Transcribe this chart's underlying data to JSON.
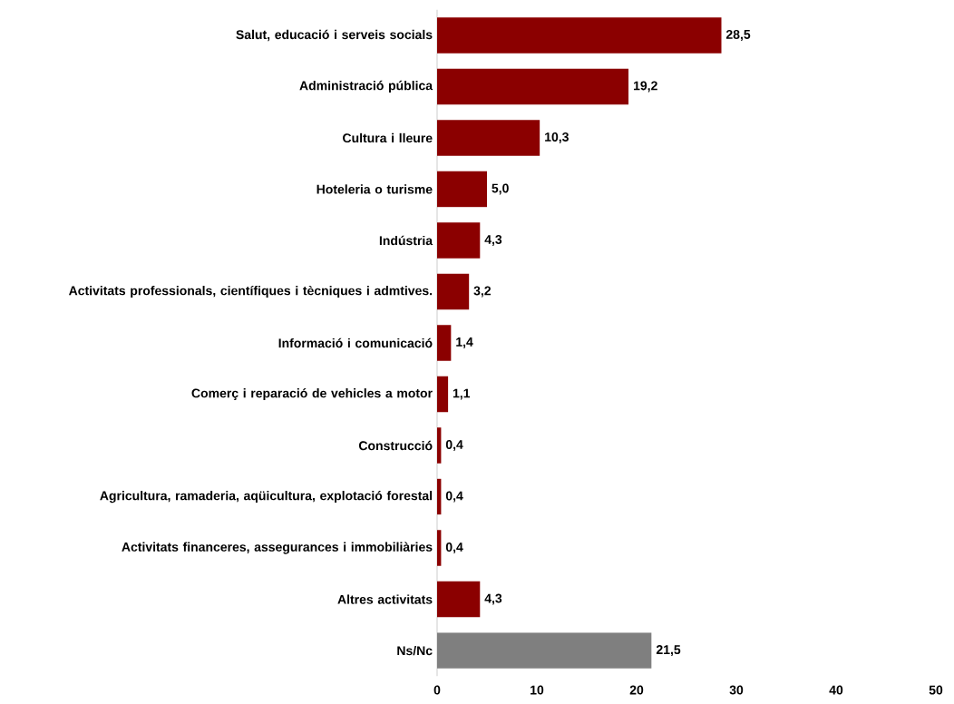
{
  "chart_data": {
    "type": "bar",
    "orientation": "horizontal",
    "categories": [
      "Salut, educació i serveis socials",
      "Administració pública",
      "Cultura i lleure",
      "Hoteleria o turisme",
      "Indústria",
      "Activitats professionals, científiques i tècniques i admtives.",
      "Informació i comunicació",
      "Comerç i reparació de vehicles a motor",
      "Construcció",
      "Agricultura, ramaderia, aqüicultura, explotació forestal",
      "Activitats financeres, assegurances i immobiliàries",
      "Altres activitats",
      "Ns/Nc"
    ],
    "values": [
      28.5,
      19.2,
      10.3,
      5.0,
      4.3,
      3.2,
      1.4,
      1.1,
      0.4,
      0.4,
      0.4,
      4.3,
      21.5
    ],
    "value_labels": [
      "28,5",
      "19,2",
      "10,3",
      "5,0",
      "4,3",
      "3,2",
      "1,4",
      "1,1",
      "0,4",
      "0,4",
      "0,4",
      "4,3",
      "21,5"
    ],
    "colors": [
      "#8b0000",
      "#8b0000",
      "#8b0000",
      "#8b0000",
      "#8b0000",
      "#8b0000",
      "#8b0000",
      "#8b0000",
      "#8b0000",
      "#8b0000",
      "#8b0000",
      "#8b0000",
      "#7f7f7f"
    ],
    "xlim": [
      0,
      50
    ],
    "xticks": [
      0,
      10,
      20,
      30,
      40,
      50
    ]
  }
}
